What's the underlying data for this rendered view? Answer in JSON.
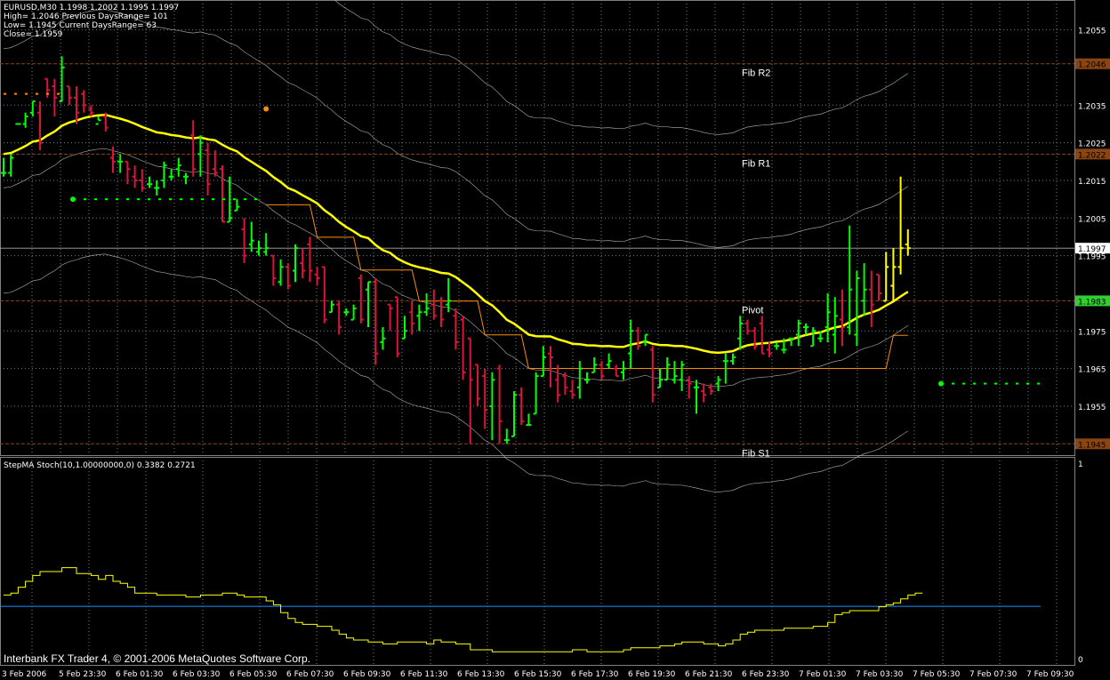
{
  "header": {
    "line1": "EURUSD,M30  1.1998 1.2002 1.1995 1.1997",
    "line2": "High= 1.2046 Previous DaysRange= 101",
    "line3": "Low= 1.1945 Current DaysRange= 63",
    "line4": "Close= 1.1959"
  },
  "indicator_label": "StepMA Stoch(10,1.00000000,0) 0.3382 0.2721",
  "copyright": "Interbank FX Trader 4, © 2001-2006 MetaQuotes Software Corp.",
  "colors": {
    "background": "#000000",
    "grid": "#708090",
    "bull": "#00ff00",
    "bear": "#dc143c",
    "current_bull": "#ffff00",
    "ma": "#ffff00",
    "step": "#ff8c00",
    "bands": "#c0c0c0",
    "pivot_lines": "#8b4513",
    "bid_line": "#a9a9a9",
    "oscillator": "#ffff00",
    "oscillator_level": "#1e90ff",
    "label_box": "#8b4513",
    "pivot_box": "#32cd32"
  },
  "chart_data": [
    {
      "type": "ohlc",
      "symbol": "EURUSD",
      "timeframe": "M30",
      "y_ticks": [
        1.2055,
        1.2035,
        1.2025,
        1.2015,
        1.2005,
        1.1995,
        1.1975,
        1.1965,
        1.1955
      ],
      "ylim": [
        1.1942,
        1.2062
      ],
      "x_tick_labels": [
        "3 Feb 2006",
        "5 Feb 23:30",
        "6 Feb 01:30",
        "6 Feb 03:30",
        "6 Feb 05:30",
        "6 Feb 07:30",
        "6 Feb 09:30",
        "6 Feb 11:30",
        "6 Feb 13:30",
        "6 Feb 15:30",
        "6 Feb 17:30",
        "6 Feb 19:30",
        "6 Feb 21:30",
        "6 Feb 23:30",
        "7 Feb 01:30",
        "7 Feb 03:30",
        "7 Feb 05:30",
        "7 Feb 07:30",
        "7 Feb 09:30"
      ],
      "levels": [
        {
          "name": "Fib R2",
          "value": 1.2046,
          "price_label": "1.2046"
        },
        {
          "name": "Fib R1",
          "value": 1.2022,
          "price_label": "1.2022"
        },
        {
          "name": "Pivot",
          "value": 1.1983,
          "price_label": "1.1983"
        },
        {
          "name": "Fib S1",
          "value": 1.1945,
          "price_label": "1.1945"
        }
      ],
      "bid": {
        "value": 1.1997,
        "price_label": "1.1997"
      },
      "bars": [
        [
          1.2017,
          1.2021,
          1.2016,
          1.2017
        ],
        [
          1.2017,
          1.2022,
          1.2016,
          1.2021
        ],
        [
          1.203,
          1.203,
          1.203,
          1.203
        ],
        [
          1.203,
          1.2033,
          1.2029,
          1.2032
        ],
        [
          1.2033,
          1.2036,
          1.2032,
          1.2036
        ],
        [
          1.2033,
          1.2036,
          1.2023,
          1.2025
        ],
        [
          1.2042,
          1.2042,
          1.2037,
          1.2039
        ],
        [
          1.204,
          1.2042,
          1.2032,
          1.2037
        ],
        [
          1.2036,
          1.2048,
          1.2036,
          1.2045
        ],
        [
          1.204,
          1.204,
          1.2035,
          1.2037
        ],
        [
          1.2037,
          1.204,
          1.203,
          1.2033
        ],
        [
          1.2038,
          1.2039,
          1.2033,
          1.2035
        ],
        [
          1.2034,
          1.2035,
          1.2032,
          1.2033
        ],
        [
          1.203,
          1.2032,
          1.2031,
          1.2031
        ],
        [
          1.2032,
          1.2033,
          1.2028,
          1.2029
        ],
        [
          1.2021,
          1.2024,
          1.2017,
          1.202
        ],
        [
          1.202,
          1.2022,
          1.2017,
          1.202
        ],
        [
          1.202,
          1.202,
          1.2014,
          1.2018
        ],
        [
          1.2016,
          1.2019,
          1.2013,
          1.2015
        ],
        [
          1.2015,
          1.2018,
          1.2012,
          1.2013
        ],
        [
          1.2014,
          1.2016,
          1.2013,
          1.2014
        ],
        [
          1.2013,
          1.2015,
          1.2011,
          1.2013
        ],
        [
          1.2015,
          1.202,
          1.2013,
          1.2019
        ],
        [
          1.2016,
          1.2018,
          1.2015,
          1.2016
        ],
        [
          1.2018,
          1.2021,
          1.2016,
          1.2019
        ],
        [
          1.2016,
          1.2017,
          1.2014,
          1.2016
        ],
        [
          1.2027,
          1.2031,
          1.2016,
          1.2018
        ],
        [
          1.2022,
          1.2027,
          1.2016,
          1.2025
        ],
        [
          1.2023,
          1.2025,
          1.2011,
          1.2014
        ],
        [
          1.2018,
          1.2023,
          1.2016,
          1.2017
        ],
        [
          1.2018,
          1.2019,
          1.2004,
          1.2004
        ],
        [
          1.2004,
          1.2016,
          1.2004,
          1.2005
        ],
        [
          1.2007,
          1.201,
          1.2007,
          1.2008
        ],
        [
          1.2002,
          1.2005,
          1.1993,
          1.1995
        ],
        [
          1.1998,
          1.2004,
          1.1996,
          1.1999
        ],
        [
          1.1996,
          1.1999,
          1.1995,
          1.1997
        ],
        [
          1.1996,
          1.2001,
          1.1995,
          1.1997
        ],
        [
          1.1995,
          1.1995,
          1.1987,
          1.1989
        ],
        [
          1.1988,
          1.1994,
          1.1987,
          1.1992
        ],
        [
          1.1992,
          1.1993,
          1.1986,
          1.1987
        ],
        [
          1.1991,
          1.1998,
          1.1988,
          1.1997
        ],
        [
          1.1993,
          1.1997,
          1.1989,
          1.1991
        ],
        [
          1.1998,
          1.2,
          1.1988,
          1.1991
        ],
        [
          1.199,
          1.1992,
          1.1987,
          1.1989
        ],
        [
          1.1992,
          1.1992,
          1.1977,
          1.1978
        ],
        [
          1.198,
          1.1983,
          1.198,
          1.1982
        ],
        [
          1.1982,
          1.1983,
          1.1974,
          1.1976
        ],
        [
          1.198,
          1.1981,
          1.1979,
          1.198
        ],
        [
          1.1978,
          1.1982,
          1.1978,
          1.1981
        ],
        [
          1.1989,
          1.199,
          1.1977,
          1.1978
        ],
        [
          1.1986,
          1.1988,
          1.1976,
          1.1988
        ],
        [
          1.1988,
          1.1989,
          1.1966,
          1.1969
        ],
        [
          1.1972,
          1.1976,
          1.197,
          1.1973
        ],
        [
          1.1982,
          1.1982,
          1.1975,
          1.1981
        ],
        [
          1.1984,
          1.1984,
          1.1968,
          1.1969
        ],
        [
          1.1973,
          1.1979,
          1.1973,
          1.1975
        ],
        [
          1.198,
          1.1983,
          1.1974,
          1.1977
        ],
        [
          1.1979,
          1.1982,
          1.1975,
          1.198
        ],
        [
          1.198,
          1.1985,
          1.1979,
          1.1981
        ],
        [
          1.1982,
          1.1986,
          1.1978,
          1.1979
        ],
        [
          1.1983,
          1.1984,
          1.1976,
          1.1978
        ],
        [
          1.1982,
          1.1989,
          1.198,
          1.1983
        ],
        [
          1.1979,
          1.1981,
          1.197,
          1.1972
        ],
        [
          1.1978,
          1.1979,
          1.1962,
          1.1964
        ],
        [
          1.1973,
          1.1973,
          1.1945,
          1.1962
        ],
        [
          1.1966,
          1.1966,
          1.1955,
          1.1957
        ],
        [
          1.1963,
          1.1965,
          1.1949,
          1.1954
        ],
        [
          1.1955,
          1.1964,
          1.1946,
          1.1962
        ],
        [
          1.1965,
          1.1966,
          1.1945,
          1.1951
        ],
        [
          1.1946,
          1.1949,
          1.1945,
          1.1946
        ],
        [
          1.1947,
          1.1959,
          1.1947,
          1.1958
        ],
        [
          1.1958,
          1.196,
          1.195,
          1.1951
        ],
        [
          1.195,
          1.1953,
          1.195,
          1.195
        ],
        [
          1.1953,
          1.1964,
          1.1953,
          1.1963
        ],
        [
          1.1963,
          1.1971,
          1.1963,
          1.1968
        ],
        [
          1.1969,
          1.1971,
          1.196,
          1.1968
        ],
        [
          1.1962,
          1.1966,
          1.1956,
          1.1958
        ],
        [
          1.1963,
          1.1964,
          1.1958,
          1.196
        ],
        [
          1.1959,
          1.1962,
          1.1957,
          1.1958
        ],
        [
          1.196,
          1.1967,
          1.1957,
          1.1965
        ],
        [
          1.1962,
          1.1964,
          1.1961,
          1.1962
        ],
        [
          1.1964,
          1.1968,
          1.1964,
          1.1966
        ],
        [
          1.1966,
          1.1967,
          1.1962,
          1.1963
        ],
        [
          1.1966,
          1.1969,
          1.1965,
          1.1967
        ],
        [
          1.1965,
          1.1966,
          1.1963,
          1.1963
        ],
        [
          1.1964,
          1.1967,
          1.1962,
          1.1965
        ],
        [
          1.1969,
          1.1978,
          1.1965,
          1.1975
        ],
        [
          1.1975,
          1.1976,
          1.197,
          1.1971
        ],
        [
          1.1972,
          1.1974,
          1.1971,
          1.1974
        ],
        [
          1.197,
          1.1971,
          1.1956,
          1.1958
        ],
        [
          1.196,
          1.1965,
          1.196,
          1.1962
        ],
        [
          1.1962,
          1.1968,
          1.1962,
          1.1966
        ],
        [
          1.1962,
          1.1967,
          1.1961,
          1.1963
        ],
        [
          1.1962,
          1.1967,
          1.1959,
          1.1966
        ],
        [
          1.1962,
          1.1963,
          1.1957,
          1.1961
        ],
        [
          1.196,
          1.1962,
          1.1953,
          1.196
        ],
        [
          1.1959,
          1.1961,
          1.1956,
          1.1958
        ],
        [
          1.196,
          1.1961,
          1.1958,
          1.1959
        ],
        [
          1.1961,
          1.1963,
          1.1959,
          1.1962
        ],
        [
          1.1967,
          1.1969,
          1.1961,
          1.1967
        ],
        [
          1.1967,
          1.1969,
          1.1966,
          1.1968
        ],
        [
          1.1973,
          1.1979,
          1.197,
          1.1977
        ],
        [
          1.1977,
          1.1978,
          1.1974,
          1.1975
        ],
        [
          1.1975,
          1.1976,
          1.197,
          1.1971
        ],
        [
          1.1977,
          1.1979,
          1.1969,
          1.1969
        ],
        [
          1.197,
          1.1972,
          1.1968,
          1.1969
        ],
        [
          1.1971,
          1.1972,
          1.197,
          1.1971
        ],
        [
          1.197,
          1.1973,
          1.1969,
          1.197
        ],
        [
          1.1973,
          1.1973,
          1.1971,
          1.1973
        ],
        [
          1.1974,
          1.1978,
          1.1971,
          1.1977
        ],
        [
          1.1976,
          1.1977,
          1.1974,
          1.1976
        ],
        [
          1.1971,
          1.1976,
          1.1971,
          1.1975
        ],
        [
          1.1973,
          1.1975,
          1.1972,
          1.1973
        ],
        [
          1.1976,
          1.1985,
          1.1972,
          1.198
        ],
        [
          1.1974,
          1.1984,
          1.1969,
          1.1979
        ],
        [
          1.1978,
          1.1986,
          1.1971,
          1.1976
        ],
        [
          1.1976,
          1.2003,
          1.1974,
          1.1986
        ],
        [
          1.1974,
          1.1991,
          1.1971,
          1.1989
        ],
        [
          1.1983,
          1.1993,
          1.1979,
          1.1986
        ],
        [
          1.1986,
          1.1991,
          1.1976,
          1.1982
        ],
        [
          1.199,
          1.199,
          1.1983,
          1.1985
        ],
        [
          1.1983,
          1.1996,
          1.1983,
          1.1992
        ],
        [
          1.1987,
          1.1997,
          1.1983,
          1.1992
        ],
        [
          1.1992,
          1.2016,
          1.199,
          1.1997
        ],
        [
          1.1998,
          1.2002,
          1.1995,
          1.1997
        ]
      ]
    },
    {
      "type": "line",
      "title": "StepMA Stoch(10,1.00000000,0) 0.3382 0.2721",
      "ylim": [
        0,
        1
      ],
      "y_ticks": [
        0,
        1
      ],
      "series": [
        {
          "values": [
            0.33,
            0.34,
            0.37,
            0.4,
            0.43,
            0.45,
            0.45,
            0.45,
            0.47,
            0.47,
            0.44,
            0.44,
            0.43,
            0.41,
            0.43,
            0.4,
            0.39,
            0.37,
            0.34,
            0.34,
            0.34,
            0.33,
            0.33,
            0.33,
            0.33,
            0.32,
            0.32,
            0.33,
            0.33,
            0.33,
            0.34,
            0.34,
            0.33,
            0.32,
            0.32,
            0.32,
            0.3,
            0.28,
            0.24,
            0.21,
            0.19,
            0.18,
            0.18,
            0.17,
            0.17,
            0.15,
            0.13,
            0.11,
            0.1,
            0.1,
            0.09,
            0.09,
            0.08,
            0.08,
            0.09,
            0.09,
            0.09,
            0.09,
            0.08,
            0.1,
            0.09,
            0.09,
            0.08,
            0.08,
            0.05,
            0.05,
            0.05,
            0.04,
            0.04,
            0.04,
            0.04,
            0.04,
            0.04,
            0.04,
            0.04,
            0.04,
            0.04,
            0.04,
            0.05,
            0.05,
            0.04,
            0.04,
            0.04,
            0.04,
            0.04,
            0.05,
            0.06,
            0.06,
            0.06,
            0.06,
            0.07,
            0.07,
            0.08,
            0.09,
            0.09,
            0.09,
            0.08,
            0.08,
            0.07,
            0.08,
            0.1,
            0.13,
            0.14,
            0.15,
            0.15,
            0.15,
            0.15,
            0.16,
            0.16,
            0.16,
            0.16,
            0.17,
            0.17,
            0.19,
            0.23,
            0.24,
            0.25,
            0.25,
            0.25,
            0.25,
            0.27,
            0.28,
            0.29,
            0.31,
            0.33,
            0.34,
            0.34
          ]
        },
        {
          "values": [
            0.2721
          ]
        }
      ]
    }
  ]
}
